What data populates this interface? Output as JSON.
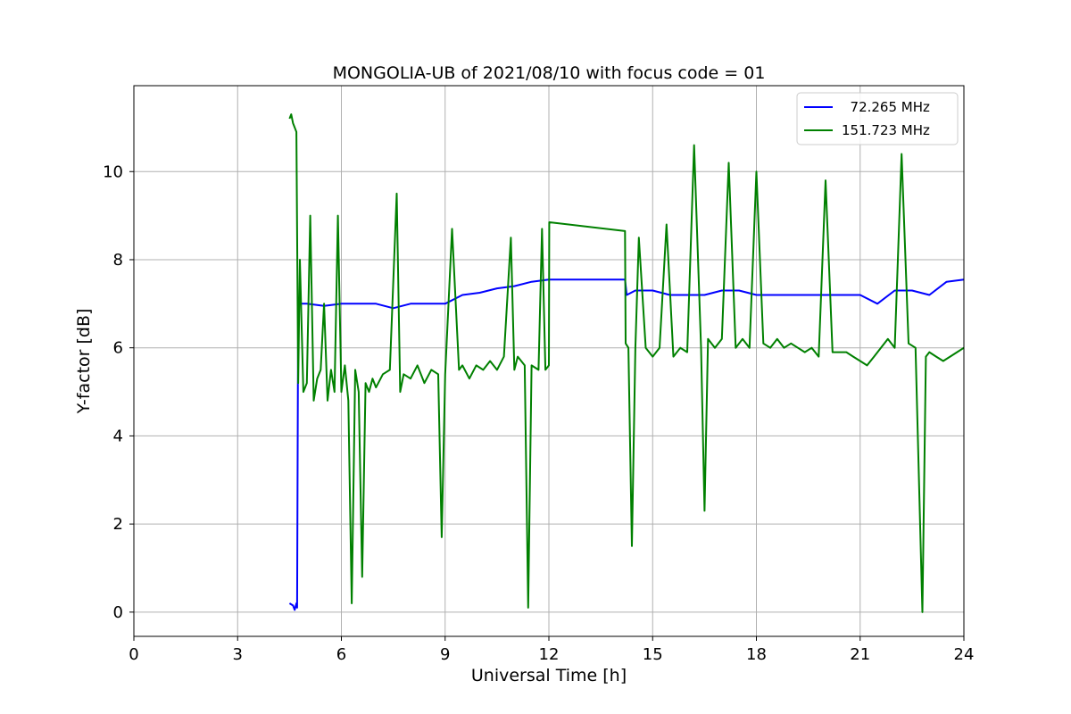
{
  "chart_data": {
    "type": "line",
    "title": "MONGOLIA-UB of 2021/08/10 with focus code = 01",
    "xlabel": "Universal Time [h]",
    "ylabel": "Y-factor [dB]",
    "xlim": [
      0,
      24
    ],
    "ylim": [
      -0.55,
      11.95
    ],
    "xticks": [
      0,
      3,
      6,
      9,
      12,
      15,
      18,
      21,
      24
    ],
    "yticks": [
      0,
      2,
      4,
      6,
      8,
      10
    ],
    "xtick_labels": [
      "0",
      "3",
      "6",
      "9",
      "12",
      "15",
      "18",
      "21",
      "24"
    ],
    "ytick_labels": [
      "0",
      "2",
      "4",
      "6",
      "8",
      "10"
    ],
    "grid": true,
    "legend_position": "top-right",
    "series": [
      {
        "name": "  72.265 MHz",
        "color": "#0000ff",
        "x": [
          4.5,
          4.6,
          4.65,
          4.7,
          4.72,
          4.75,
          4.78,
          5.0,
          5.5,
          6.0,
          6.5,
          7.0,
          7.5,
          8.0,
          8.5,
          9.0,
          9.5,
          10.0,
          10.5,
          11.0,
          11.5,
          12.0,
          14.2,
          14.25,
          14.5,
          15.0,
          15.5,
          16.0,
          16.5,
          17.0,
          17.5,
          18.0,
          18.5,
          19.0,
          19.5,
          20.0,
          20.5,
          21.0,
          21.5,
          22.0,
          22.5,
          23.0,
          23.5,
          24.0
        ],
        "y": [
          0.2,
          0.15,
          0.05,
          0.2,
          0.1,
          7.1,
          7.0,
          7.0,
          6.95,
          7.0,
          7.0,
          7.0,
          6.9,
          7.0,
          7.0,
          7.0,
          7.2,
          7.25,
          7.35,
          7.4,
          7.5,
          7.55,
          7.55,
          7.2,
          7.3,
          7.3,
          7.2,
          7.2,
          7.2,
          7.3,
          7.3,
          7.2,
          7.2,
          7.2,
          7.2,
          7.2,
          7.2,
          7.2,
          7.0,
          7.3,
          7.3,
          7.2,
          7.5,
          7.55
        ]
      },
      {
        "name": "151.723 MHz",
        "color": "#008000",
        "x": [
          4.5,
          4.55,
          4.6,
          4.65,
          4.7,
          4.75,
          4.8,
          4.9,
          5.0,
          5.1,
          5.2,
          5.3,
          5.4,
          5.5,
          5.6,
          5.7,
          5.8,
          5.9,
          6.0,
          6.1,
          6.2,
          6.3,
          6.4,
          6.5,
          6.6,
          6.7,
          6.8,
          6.9,
          7.0,
          7.2,
          7.4,
          7.6,
          7.7,
          7.8,
          8.0,
          8.2,
          8.4,
          8.6,
          8.8,
          8.9,
          9.0,
          9.2,
          9.4,
          9.5,
          9.7,
          9.9,
          10.1,
          10.3,
          10.5,
          10.7,
          10.9,
          11.0,
          11.1,
          11.3,
          11.4,
          11.5,
          11.7,
          11.8,
          11.9,
          12.0,
          12.01,
          14.2,
          14.22,
          14.3,
          14.4,
          14.5,
          14.6,
          14.8,
          15.0,
          15.2,
          15.4,
          15.6,
          15.8,
          16.0,
          16.2,
          16.4,
          16.5,
          16.6,
          16.8,
          17.0,
          17.2,
          17.4,
          17.6,
          17.8,
          18.0,
          18.2,
          18.4,
          18.6,
          18.8,
          19.0,
          19.2,
          19.4,
          19.6,
          19.8,
          20.0,
          20.2,
          20.4,
          20.6,
          20.8,
          21.0,
          21.2,
          21.4,
          21.6,
          21.8,
          22.0,
          22.2,
          22.4,
          22.6,
          22.8,
          22.9,
          23.0,
          23.2,
          23.4,
          23.6,
          23.8,
          24.0
        ],
        "y": [
          11.2,
          11.3,
          11.1,
          11.0,
          10.9,
          5.2,
          8.0,
          5.0,
          5.2,
          9.0,
          4.8,
          5.3,
          5.5,
          7.0,
          4.8,
          5.5,
          5.0,
          9.0,
          5.0,
          5.6,
          4.8,
          0.2,
          5.5,
          5.0,
          0.8,
          5.2,
          5.0,
          5.3,
          5.1,
          5.4,
          5.5,
          9.5,
          5.0,
          5.4,
          5.3,
          5.6,
          5.2,
          5.5,
          5.4,
          1.7,
          5.4,
          8.7,
          5.5,
          5.6,
          5.3,
          5.6,
          5.5,
          5.7,
          5.5,
          5.8,
          8.5,
          5.5,
          5.8,
          5.6,
          0.1,
          5.6,
          5.5,
          8.7,
          5.5,
          5.6,
          8.85,
          8.65,
          6.1,
          6.0,
          1.5,
          6.0,
          8.5,
          6.0,
          5.8,
          6.0,
          8.8,
          5.8,
          6.0,
          5.9,
          10.6,
          6.0,
          2.3,
          6.2,
          6.0,
          6.2,
          10.2,
          6.0,
          6.2,
          6.0,
          10.0,
          6.1,
          6.0,
          6.2,
          6.0,
          6.1,
          6.0,
          5.9,
          6.0,
          5.8,
          9.8,
          5.9,
          5.9,
          5.9,
          5.8,
          5.7,
          5.6,
          5.8,
          6.0,
          6.2,
          6.0,
          10.4,
          6.1,
          6.0,
          0.0,
          5.8,
          5.9,
          5.8,
          5.7,
          5.8,
          5.9,
          6.0
        ]
      }
    ]
  }
}
